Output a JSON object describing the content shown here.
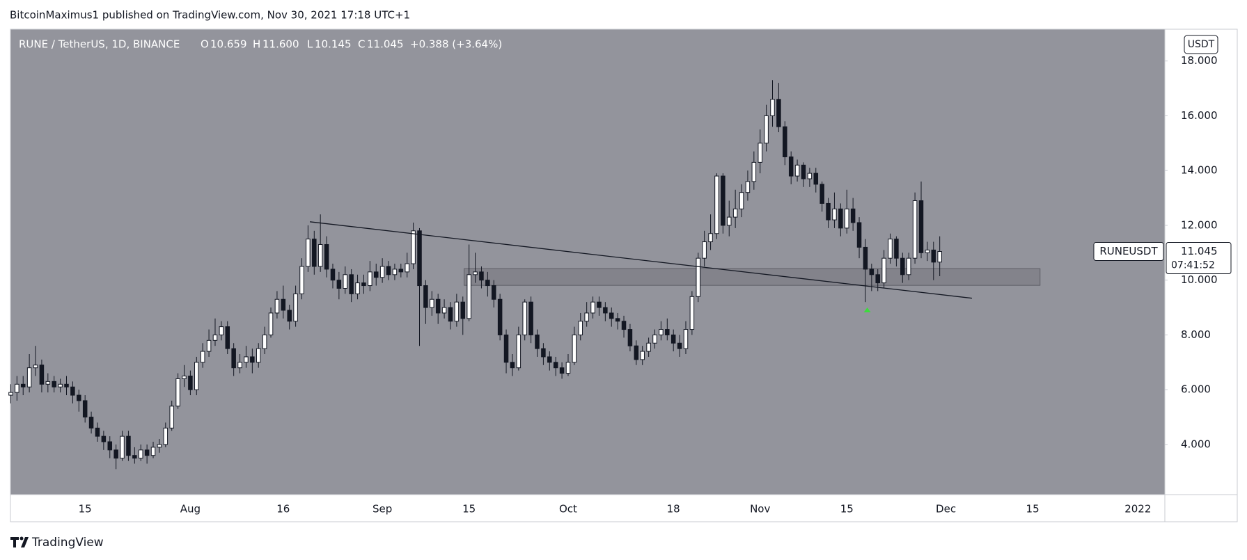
{
  "header": {
    "text": "BitcoinMaximus1 published on TradingView.com, Nov 30, 2021 17:18 UTC+1"
  },
  "footer": {
    "brand": "TradingView"
  },
  "chart_data": {
    "type": "candlestick",
    "symbol": "RUNE / TetherUS, 1D, BINANCE",
    "legend": {
      "open_key": "O",
      "open": "10.659",
      "high_key": "H",
      "high": "11.600",
      "low_key": "L",
      "low": "10.145",
      "close_key": "C",
      "close": "11.045",
      "change": "+0.388 (+3.64%)"
    },
    "currency": "USDT",
    "ticker": "RUNEUSDT",
    "countdown": "07:41:52",
    "background": "#93949c",
    "up_color": "#ffffff",
    "down_color": "#131722",
    "border_color": "#131722",
    "grid": false,
    "ylim": [
      2.17,
      19.16
    ],
    "yticks": [
      {
        "value": 4,
        "label": "4.000"
      },
      {
        "value": 6,
        "label": "6.000"
      },
      {
        "value": 8,
        "label": "8.000"
      },
      {
        "value": 10,
        "label": "10.000"
      },
      {
        "value": 12,
        "label": "12.000"
      },
      {
        "value": 14,
        "label": "14.000"
      },
      {
        "value": 16,
        "label": "16.000"
      },
      {
        "value": 18,
        "label": "18.000"
      }
    ],
    "categories": [
      null,
      null,
      null,
      null,
      null,
      null,
      null,
      null,
      null,
      null,
      null,
      null,
      "15",
      null,
      null,
      null,
      null,
      null,
      null,
      null,
      null,
      null,
      null,
      null,
      null,
      null,
      null,
      null,
      null,
      "Aug",
      null,
      null,
      null,
      null,
      null,
      null,
      null,
      null,
      null,
      null,
      null,
      null,
      null,
      null,
      "16",
      null,
      null,
      null,
      null,
      null,
      null,
      null,
      null,
      null,
      null,
      null,
      null,
      null,
      null,
      null,
      "Sep",
      null,
      null,
      null,
      null,
      null,
      null,
      null,
      null,
      null,
      null,
      null,
      null,
      null,
      "15",
      null,
      null,
      null,
      null,
      null,
      null,
      null,
      null,
      null,
      null,
      null,
      null,
      null,
      null,
      null,
      "Oct",
      null,
      null,
      null,
      null,
      null,
      null,
      null,
      null,
      null,
      null,
      null,
      null,
      null,
      null,
      null,
      null,
      "18",
      null,
      null,
      null,
      null,
      null,
      null,
      null,
      null,
      null,
      null,
      null,
      null,
      null,
      "Nov",
      null,
      null,
      null,
      null,
      null,
      null,
      null,
      null,
      null,
      null,
      null,
      null,
      null,
      "15",
      null,
      null,
      null,
      null,
      null,
      null,
      null,
      null,
      null,
      null,
      null,
      null,
      null,
      null,
      null,
      "Dec",
      null,
      null,
      null,
      null,
      null,
      null,
      null,
      null,
      null,
      null,
      null,
      null,
      null,
      "15",
      null,
      null,
      null,
      null,
      null,
      null,
      null,
      null,
      null,
      null,
      null,
      null,
      null,
      null,
      null,
      null,
      "2022",
      null,
      null,
      null,
      null
    ],
    "open": [
      5.8,
      5.9,
      6.2,
      6.1,
      6.8,
      6.9,
      6.2,
      6.3,
      6.1,
      6.2,
      6.1,
      5.8,
      5.6,
      5.0,
      4.6,
      4.3,
      4.1,
      3.8,
      3.5,
      4.3,
      3.6,
      3.5,
      3.8,
      3.6,
      3.9,
      4.0,
      4.6,
      5.4,
      6.4,
      6.5,
      6.0,
      7.0,
      7.4,
      7.8,
      8.0,
      8.3,
      7.5,
      6.8,
      7.0,
      7.2,
      7.0,
      7.5,
      8.0,
      8.8,
      9.3,
      8.9,
      8.5,
      9.5,
      10.5,
      11.5,
      10.5,
      11.3,
      10.4,
      10.0,
      9.7,
      10.2,
      9.5,
      9.9,
      9.8,
      10.3,
      10.1,
      10.5,
      10.2,
      10.4,
      10.3,
      10.6,
      11.8,
      9.8,
      9.0,
      9.3,
      8.8,
      9.0,
      8.5,
      9.2,
      8.6,
      10.2,
      10.3,
      10.0,
      9.8,
      9.3,
      8.0,
      7.0,
      6.8,
      8.0,
      9.2,
      8.0,
      7.5,
      7.2,
      7.0,
      6.8,
      6.6,
      7.0,
      8.0,
      8.5,
      8.8,
      9.2,
      9.0,
      8.8,
      8.6,
      8.5,
      8.2,
      7.6,
      7.1,
      7.4,
      7.7,
      8.0,
      8.2,
      8.0,
      7.7,
      7.5,
      8.2,
      9.4,
      10.8,
      11.4,
      11.7,
      13.8,
      12.0,
      12.3,
      12.6,
      13.2,
      13.6,
      14.3,
      15.0,
      16.0,
      16.6,
      15.6,
      14.5,
      13.8,
      14.2,
      13.7,
      13.9,
      13.5,
      12.8,
      12.2,
      12.6,
      11.9,
      12.6,
      12.1,
      11.2,
      10.4,
      10.2,
      9.9,
      10.8,
      11.5,
      10.8,
      10.2,
      10.8,
      12.9,
      11.0,
      11.1,
      10.659,
      null,
      null,
      null,
      null,
      null,
      null,
      null,
      null,
      null,
      null,
      null,
      null,
      null,
      null,
      null,
      null,
      null,
      null,
      null,
      null,
      null,
      null,
      null,
      null,
      null,
      null,
      null,
      null,
      null,
      null,
      null,
      null,
      null,
      null,
      null,
      null
    ],
    "high": [
      6.2,
      6.5,
      6.5,
      7.3,
      7.6,
      7.1,
      6.6,
      6.5,
      6.4,
      6.5,
      6.3,
      6.0,
      5.8,
      5.2,
      4.8,
      4.5,
      4.3,
      4.0,
      4.5,
      4.5,
      3.9,
      4.0,
      4.0,
      4.1,
      4.2,
      4.8,
      5.6,
      6.6,
      6.9,
      6.7,
      7.2,
      7.7,
      8.2,
      8.6,
      8.5,
      8.5,
      7.7,
      7.3,
      7.6,
      7.5,
      7.7,
      8.3,
      9.0,
      9.6,
      9.8,
      9.1,
      9.8,
      10.8,
      12.0,
      11.8,
      12.4,
      11.6,
      10.6,
      10.3,
      10.5,
      10.4,
      10.2,
      10.2,
      10.7,
      10.6,
      10.8,
      10.7,
      10.6,
      10.6,
      11.0,
      12.1,
      11.9,
      10.0,
      9.6,
      9.5,
      9.3,
      9.2,
      9.5,
      9.4,
      11.3,
      11.0,
      10.5,
      10.3,
      10.0,
      9.5,
      8.2,
      7.3,
      8.3,
      9.3,
      9.4,
      8.2,
      7.7,
      7.4,
      7.2,
      7.0,
      7.3,
      8.3,
      8.8,
      9.2,
      9.4,
      9.4,
      9.2,
      9.0,
      8.8,
      8.7,
      8.4,
      7.8,
      7.6,
      7.9,
      8.2,
      8.5,
      8.6,
      8.2,
      8.0,
      8.5,
      9.6,
      11.0,
      11.8,
      12.4,
      13.9,
      13.9,
      12.9,
      13.3,
      13.5,
      14.0,
      14.7,
      15.5,
      16.4,
      17.3,
      17.2,
      15.8,
      14.7,
      14.4,
      14.3,
      14.1,
      14.1,
      13.6,
      13.0,
      13.2,
      12.8,
      13.3,
      13.0,
      12.3,
      11.5,
      10.6,
      10.4,
      11.1,
      11.7,
      11.6,
      11.0,
      11.0,
      13.2,
      13.6,
      11.4,
      11.4,
      11.6,
      null,
      null,
      null,
      null,
      null,
      null,
      null,
      null,
      null,
      null,
      null,
      null,
      null,
      null,
      null,
      null,
      null,
      null,
      null,
      null,
      null,
      null,
      null,
      null,
      null,
      null,
      null,
      null,
      null,
      null,
      null,
      null,
      null,
      null,
      null,
      null
    ],
    "low": [
      5.5,
      5.6,
      5.8,
      5.9,
      6.5,
      5.9,
      5.9,
      5.9,
      5.9,
      5.8,
      5.5,
      5.2,
      4.8,
      4.4,
      4.1,
      3.8,
      3.5,
      3.1,
      3.4,
      3.4,
      3.3,
      3.4,
      3.3,
      3.5,
      3.7,
      3.9,
      4.5,
      5.3,
      6.1,
      5.8,
      5.8,
      6.8,
      7.2,
      7.6,
      7.8,
      7.3,
      6.5,
      6.6,
      6.8,
      6.6,
      6.8,
      7.3,
      7.9,
      8.6,
      8.6,
      8.2,
      8.3,
      9.3,
      10.3,
      10.2,
      10.3,
      10.1,
      9.7,
      9.3,
      9.5,
      9.2,
      9.3,
      9.5,
      9.6,
      9.8,
      9.9,
      10.0,
      10.0,
      10.1,
      10.1,
      10.4,
      7.6,
      8.4,
      8.7,
      8.4,
      8.6,
      8.2,
      8.3,
      8.0,
      8.5,
      9.9,
      9.7,
      9.4,
      9.0,
      7.8,
      6.6,
      6.5,
      6.7,
      7.8,
      7.7,
      7.2,
      6.9,
      6.7,
      6.5,
      6.4,
      6.5,
      6.9,
      7.8,
      8.3,
      8.6,
      8.7,
      8.5,
      8.3,
      8.2,
      7.9,
      7.4,
      6.9,
      6.9,
      7.2,
      7.5,
      7.8,
      7.8,
      7.4,
      7.2,
      7.3,
      8.0,
      9.2,
      10.5,
      11.1,
      11.5,
      11.7,
      11.6,
      11.9,
      12.3,
      12.9,
      13.3,
      13.9,
      14.7,
      15.6,
      15.4,
      14.2,
      13.5,
      13.6,
      13.4,
      13.4,
      13.2,
      12.5,
      11.9,
      11.9,
      11.6,
      11.7,
      11.8,
      10.8,
      9.2,
      9.6,
      9.6,
      9.7,
      10.6,
      10.5,
      9.9,
      10.0,
      10.6,
      10.8,
      10.7,
      10.0,
      10.145,
      null,
      null,
      null,
      null,
      null,
      null,
      null,
      null,
      null,
      null,
      null,
      null,
      null,
      null,
      null,
      null,
      null,
      null,
      null,
      null,
      null,
      null,
      null,
      null,
      null,
      null,
      null,
      null,
      null,
      null,
      null,
      null,
      null,
      null,
      null,
      null
    ],
    "close": [
      5.9,
      6.2,
      6.1,
      6.8,
      6.9,
      6.2,
      6.3,
      6.1,
      6.2,
      6.1,
      5.8,
      5.6,
      5.0,
      4.6,
      4.3,
      4.1,
      3.8,
      3.5,
      4.3,
      3.6,
      3.5,
      3.8,
      3.6,
      3.9,
      4.0,
      4.6,
      5.4,
      6.4,
      6.5,
      6.0,
      7.0,
      7.4,
      7.8,
      8.0,
      8.3,
      7.5,
      6.8,
      7.0,
      7.2,
      7.0,
      7.5,
      8.0,
      8.8,
      9.3,
      8.9,
      8.5,
      9.5,
      10.5,
      11.5,
      10.5,
      11.3,
      10.4,
      10.0,
      9.7,
      10.2,
      9.5,
      9.9,
      9.8,
      10.3,
      10.1,
      10.5,
      10.2,
      10.4,
      10.3,
      10.6,
      11.8,
      9.8,
      9.0,
      9.3,
      8.8,
      9.0,
      8.5,
      9.2,
      8.6,
      10.2,
      10.3,
      10.0,
      9.8,
      9.3,
      8.0,
      7.0,
      6.8,
      8.0,
      9.2,
      8.0,
      7.5,
      7.2,
      7.0,
      6.8,
      6.6,
      7.0,
      8.0,
      8.5,
      8.8,
      9.2,
      9.0,
      8.8,
      8.6,
      8.5,
      8.2,
      7.6,
      7.1,
      7.4,
      7.7,
      8.0,
      8.2,
      8.0,
      7.7,
      7.5,
      8.2,
      9.4,
      10.8,
      11.4,
      11.7,
      13.8,
      12.0,
      12.3,
      12.6,
      13.2,
      13.6,
      14.3,
      15.0,
      16.0,
      16.6,
      15.6,
      14.5,
      13.8,
      14.2,
      13.7,
      13.9,
      13.5,
      12.8,
      12.2,
      12.6,
      11.9,
      12.6,
      12.1,
      11.2,
      10.4,
      10.2,
      9.9,
      10.8,
      11.5,
      10.8,
      10.2,
      10.8,
      12.9,
      11.0,
      11.1,
      10.657,
      11.045,
      null,
      null,
      null,
      null,
      null,
      null,
      null,
      null,
      null,
      null,
      null,
      null,
      null,
      null,
      null,
      null,
      null,
      null,
      null,
      null,
      null,
      null,
      null,
      null,
      null,
      null,
      null,
      null,
      null,
      null,
      null,
      null,
      null,
      null,
      null,
      null
    ],
    "trendline": {
      "x": [
        48.3,
        155.2
      ],
      "y": [
        12.13,
        9.34
      ],
      "color": "#131722"
    },
    "zone": {
      "x": [
        73.2,
        166.2
      ],
      "y": [
        9.81,
        10.42
      ],
      "color": "#7d7e86"
    },
    "arrow": {
      "x": 138.3,
      "y": 8.9,
      "color": "#3cdc3c"
    }
  }
}
